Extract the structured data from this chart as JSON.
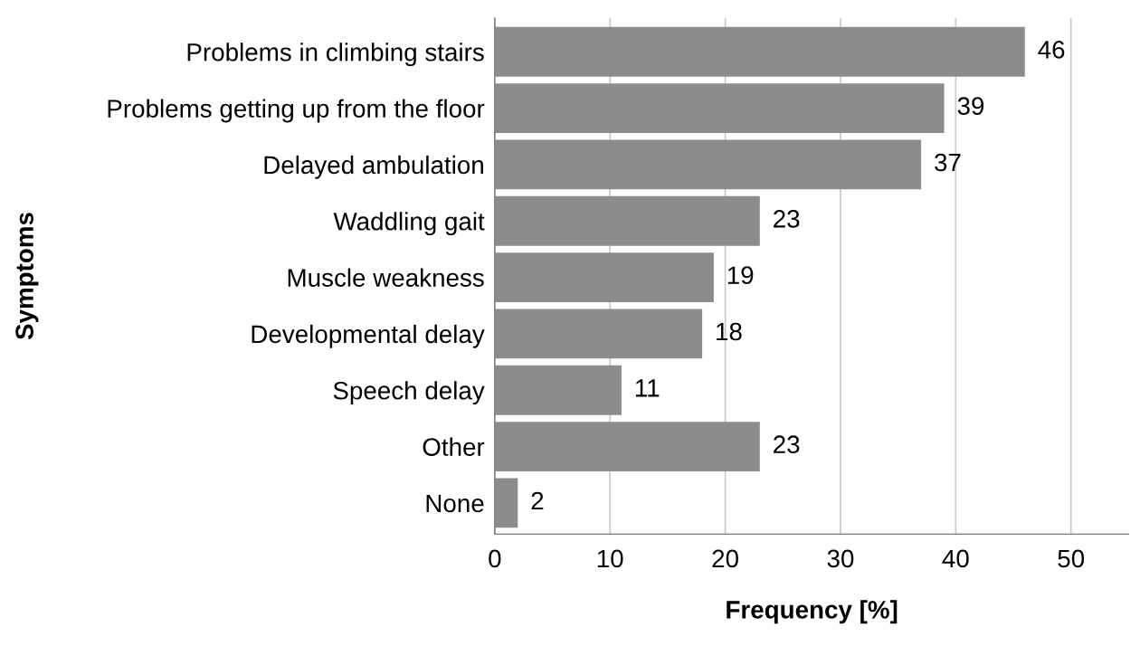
{
  "chart_data": {
    "type": "bar",
    "orientation": "horizontal",
    "xlabel": "Frequency [%]",
    "ylabel": "Symptoms",
    "categories": [
      "Problems in climbing stairs",
      "Problems getting up from the floor",
      "Delayed ambulation",
      "Waddling gait",
      "Muscle weakness",
      "Developmental delay",
      "Speech delay",
      "Other",
      "None"
    ],
    "values": [
      46,
      39,
      37,
      23,
      19,
      18,
      11,
      23,
      2
    ],
    "color": "#8c8c8c",
    "xlim": [
      0,
      55
    ],
    "xticks": [
      0,
      10,
      20,
      30,
      40,
      50
    ],
    "grid": "x",
    "data_labels": true
  }
}
